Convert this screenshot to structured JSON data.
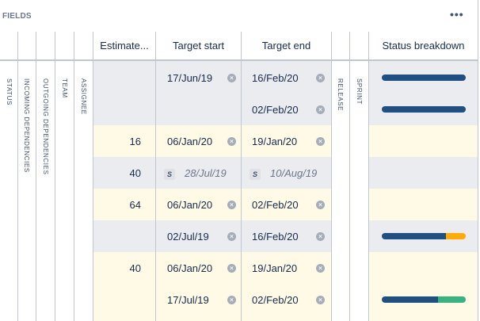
{
  "panel": {
    "title": "FIELDS",
    "more_icon": "•••"
  },
  "collapsed_columns_left": [
    "STATUS",
    "INCOMING DEPENDENCIES",
    "OUTGOING DEPENDENCIES",
    "TEAM",
    "ASSIGNEE"
  ],
  "collapsed_columns_right": [
    "RELEASE",
    "SPRINT"
  ],
  "headers": {
    "estimate": "Estimate...",
    "target_start": "Target start",
    "target_end": "Target end",
    "status_breakdown": "Status breakdown"
  },
  "colors": {
    "done": "#205081",
    "in_progress": "#ffab00",
    "todo": "#36b37e",
    "grey_row": "#ebecf0",
    "yellow_row": "#fffae6"
  },
  "rows": [
    {
      "estimate": "",
      "start": "17/Jun/19",
      "end": "16/Feb/20",
      "bar": [
        100,
        0,
        0
      ]
    },
    {
      "estimate": "",
      "start": "",
      "end": "02/Feb/20",
      "bar": [
        100,
        0,
        0
      ]
    },
    {
      "estimate": "16",
      "start": "06/Jan/20",
      "end": "19/Jan/20"
    },
    {
      "estimate": "40",
      "start": "28/Jul/19",
      "end": "10/Aug/19",
      "sprint_badge": "S"
    },
    {
      "estimate": "64",
      "start": "06/Jan/20",
      "end": "02/Feb/20"
    },
    {
      "estimate": "",
      "start": "02/Jul/19",
      "end": "16/Feb/20",
      "bar": [
        76,
        24,
        0
      ]
    },
    {
      "estimate": "40",
      "start": "06/Jan/20",
      "end": "19/Jan/20"
    },
    {
      "estimate": "",
      "start": "17/Jul/19",
      "end": "02/Feb/20",
      "bar": [
        67,
        0,
        33
      ]
    }
  ]
}
